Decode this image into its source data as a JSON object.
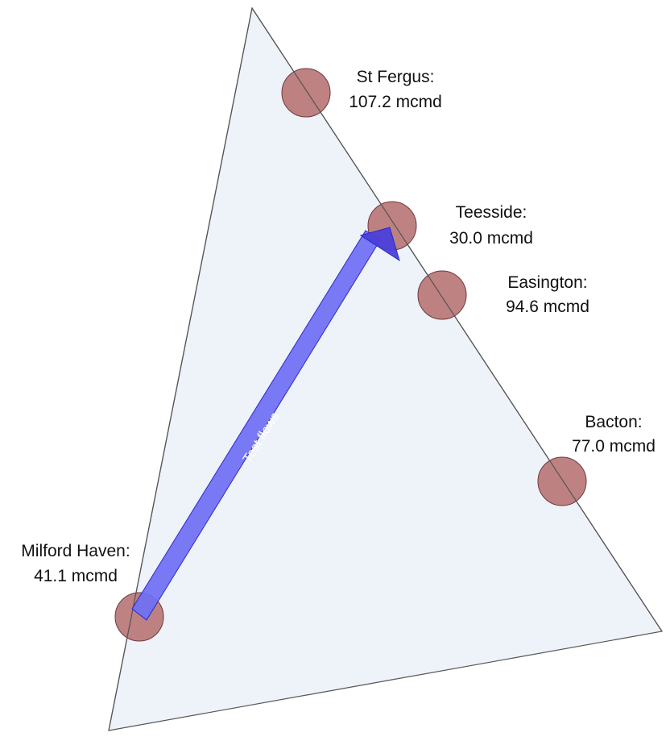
{
  "colors": {
    "region_fill": "#eef2f9",
    "region_stroke": "#555555",
    "terminal_fill": "#b87474",
    "terminal_stroke": "#6e3a3a",
    "flow_fill": "#6f6ff5",
    "flow_stroke": "#2a2acc",
    "flow_head_fill": "#4a3fd9"
  },
  "region": {
    "icon": "triangle-shape"
  },
  "terminals": [
    {
      "id": "st-fergus",
      "name": "St Fergus:",
      "flow": "107.2 mcmd"
    },
    {
      "id": "teesside",
      "name": "Teesside:",
      "flow": "30.0 mcmd"
    },
    {
      "id": "easington",
      "name": "Easington:",
      "flow": "94.6 mcmd"
    },
    {
      "id": "bacton",
      "name": "Bacton:",
      "flow": "77.0 mcmd"
    },
    {
      "id": "milford-haven",
      "name": "Milford Haven:",
      "flow": "41.1 mcmd"
    }
  ],
  "flows": [
    {
      "label": "Test flows",
      "from": "milford-haven",
      "to": "teesside"
    }
  ]
}
